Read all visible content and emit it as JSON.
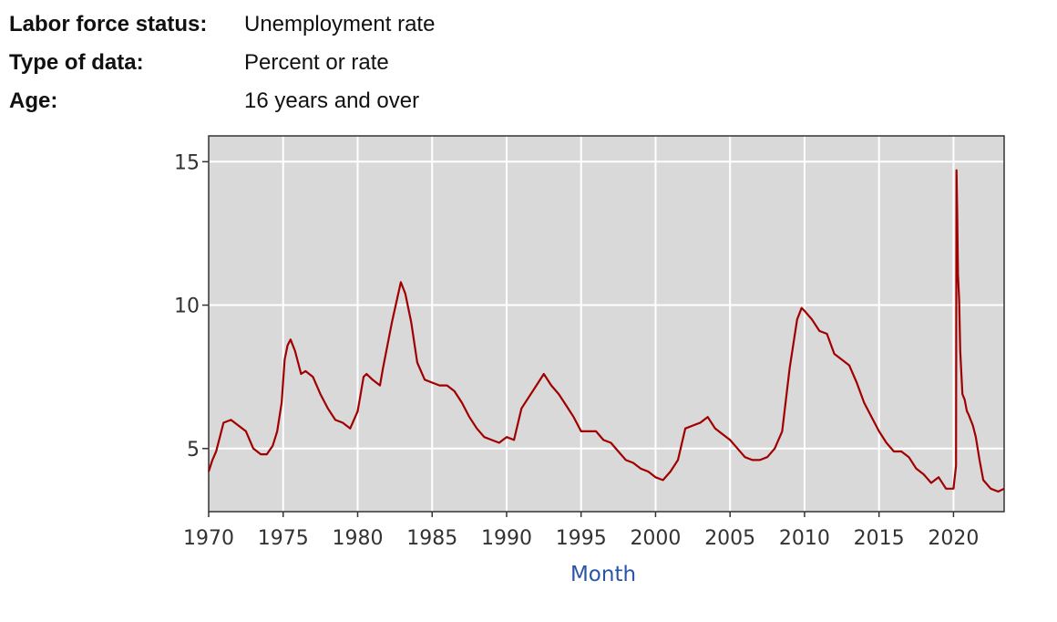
{
  "meta": {
    "rows": [
      {
        "label": "Labor force status:",
        "value": "Unemployment rate"
      },
      {
        "label": "Type of data:",
        "value": "Percent or rate"
      },
      {
        "label": "Age:",
        "value": "16 years and over"
      }
    ]
  },
  "chart_data": {
    "type": "line",
    "title": "",
    "xlabel": "Month",
    "ylabel": "",
    "xlim": [
      1970,
      2023.4
    ],
    "ylim": [
      2.8,
      15.9
    ],
    "x_ticks": [
      1970,
      1975,
      1980,
      1985,
      1990,
      1995,
      2000,
      2005,
      2010,
      2015,
      2020
    ],
    "y_ticks": [
      5,
      10,
      15
    ],
    "grid": true,
    "colors": {
      "line": "#a00000",
      "plot_background": "#d9d9d9",
      "grid": "#ffffff",
      "axis_title": "#2a54a6"
    },
    "series": [
      {
        "x": [
          1970.0,
          1970.25,
          1970.5,
          1970.75,
          1971.0,
          1971.5,
          1972.0,
          1972.5,
          1973.0,
          1973.5,
          1973.9,
          1974.3,
          1974.6,
          1974.9,
          1975.1,
          1975.3,
          1975.5,
          1975.8,
          1976.2,
          1976.5,
          1977.0,
          1977.5,
          1978.0,
          1978.5,
          1979.0,
          1979.5,
          1980.0,
          1980.2,
          1980.4,
          1980.6,
          1981.0,
          1981.5,
          1981.7,
          1982.0,
          1982.3,
          1982.6,
          1982.9,
          1983.2,
          1983.6,
          1984.0,
          1984.5,
          1985.0,
          1985.5,
          1986.0,
          1986.5,
          1987.0,
          1987.5,
          1988.0,
          1988.5,
          1989.0,
          1989.5,
          1990.0,
          1990.5,
          1991.0,
          1991.5,
          1992.0,
          1992.5,
          1993.0,
          1993.5,
          1994.0,
          1994.5,
          1995.0,
          1995.5,
          1996.0,
          1996.5,
          1997.0,
          1997.5,
          1998.0,
          1998.5,
          1999.0,
          1999.5,
          2000.0,
          2000.5,
          2001.0,
          2001.5,
          2002.0,
          2002.5,
          2003.0,
          2003.5,
          2004.0,
          2004.5,
          2005.0,
          2005.5,
          2006.0,
          2006.5,
          2007.0,
          2007.5,
          2008.0,
          2008.5,
          2009.0,
          2009.5,
          2009.8,
          2010.0,
          2010.5,
          2011.0,
          2011.5,
          2012.0,
          2012.5,
          2013.0,
          2013.5,
          2014.0,
          2014.5,
          2015.0,
          2015.5,
          2016.0,
          2016.5,
          2017.0,
          2017.5,
          2018.0,
          2018.5,
          2019.0,
          2019.5,
          2020.0,
          2020.17,
          2020.2,
          2020.25,
          2020.3,
          2020.38,
          2020.45,
          2020.5,
          2020.6,
          2020.75,
          2020.9,
          2021.0,
          2021.3,
          2021.5,
          2021.75,
          2022.0,
          2022.5,
          2023.0,
          2023.4
        ],
        "y": [
          4.2,
          4.6,
          4.9,
          5.4,
          5.9,
          6.0,
          5.8,
          5.6,
          5.0,
          4.8,
          4.8,
          5.1,
          5.6,
          6.6,
          8.1,
          8.6,
          8.8,
          8.4,
          7.6,
          7.7,
          7.5,
          6.9,
          6.4,
          6.0,
          5.9,
          5.7,
          6.3,
          6.9,
          7.5,
          7.6,
          7.4,
          7.2,
          7.8,
          8.6,
          9.4,
          10.1,
          10.8,
          10.4,
          9.4,
          8.0,
          7.4,
          7.3,
          7.2,
          7.2,
          7.0,
          6.6,
          6.1,
          5.7,
          5.4,
          5.3,
          5.2,
          5.4,
          5.3,
          6.4,
          6.8,
          7.2,
          7.6,
          7.2,
          6.9,
          6.5,
          6.1,
          5.6,
          5.6,
          5.6,
          5.3,
          5.2,
          4.9,
          4.6,
          4.5,
          4.3,
          4.2,
          4.0,
          3.9,
          4.2,
          4.6,
          5.7,
          5.8,
          5.9,
          6.1,
          5.7,
          5.5,
          5.3,
          5.0,
          4.7,
          4.6,
          4.6,
          4.7,
          5.0,
          5.6,
          7.8,
          9.5,
          9.9,
          9.8,
          9.5,
          9.1,
          9.0,
          8.3,
          8.1,
          7.9,
          7.3,
          6.6,
          6.1,
          5.6,
          5.2,
          4.9,
          4.9,
          4.7,
          4.3,
          4.1,
          3.8,
          4.0,
          3.6,
          3.6,
          4.4,
          14.7,
          13.2,
          11.1,
          10.2,
          8.4,
          7.9,
          6.9,
          6.7,
          6.3,
          6.2,
          5.8,
          5.4,
          4.6,
          3.9,
          3.6,
          3.5,
          3.6
        ]
      }
    ]
  }
}
